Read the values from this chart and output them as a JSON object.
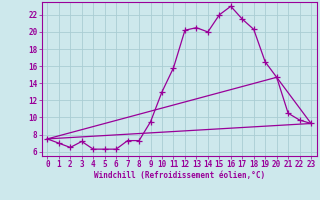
{
  "bg_color": "#cde8ec",
  "grid_color": "#aacdd4",
  "line_color": "#990099",
  "xlabel": "Windchill (Refroidissement éolien,°C)",
  "xlim": [
    -0.5,
    23.5
  ],
  "ylim": [
    5.5,
    23.5
  ],
  "yticks": [
    6,
    8,
    10,
    12,
    14,
    16,
    18,
    20,
    22
  ],
  "xticks": [
    0,
    1,
    2,
    3,
    4,
    5,
    6,
    7,
    8,
    9,
    10,
    11,
    12,
    13,
    14,
    15,
    16,
    17,
    18,
    19,
    20,
    21,
    22,
    23
  ],
  "curve_x": [
    0,
    1,
    2,
    3,
    4,
    5,
    6,
    7,
    8,
    9,
    10,
    11,
    12,
    13,
    14,
    15,
    16,
    17,
    18,
    19,
    20,
    21,
    22,
    23
  ],
  "curve_y": [
    7.5,
    7.0,
    6.5,
    7.2,
    6.3,
    6.3,
    6.3,
    7.3,
    7.3,
    9.5,
    13.0,
    15.8,
    20.2,
    20.5,
    20.0,
    22.0,
    23.0,
    21.5,
    20.3,
    16.5,
    14.7,
    10.5,
    9.7,
    9.3
  ],
  "line1_x": [
    0,
    23
  ],
  "line1_y": [
    7.5,
    9.3
  ],
  "line2_x": [
    0,
    20,
    23
  ],
  "line2_y": [
    7.5,
    14.7,
    9.3
  ]
}
